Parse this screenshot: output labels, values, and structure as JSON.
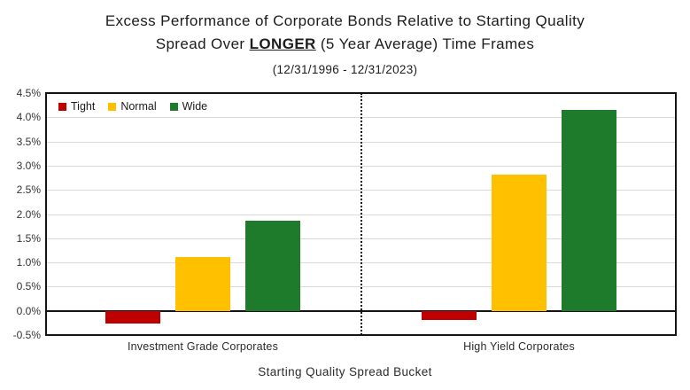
{
  "header": {
    "title_line1": "Excess Performance of Corporate Bonds Relative to Starting Quality",
    "title_line2_pre": "Spread Over ",
    "title_line2_emph": "LONGER",
    "title_line2_post": " (5 Year Average) Time Frames",
    "subtitle": "(12/31/1996 - 12/31/2023)"
  },
  "chart_data": {
    "type": "bar",
    "title": "Excess Performance of Corporate Bonds Relative to Starting Quality Spread Over LONGER (5 Year Average) Time Frames",
    "subtitle": "(12/31/1996 - 12/31/2023)",
    "categories": [
      "Investment Grade Corporates",
      "High Yield Corporates"
    ],
    "series": [
      {
        "name": "Tight",
        "color": "#C00000",
        "values": [
          -0.26,
          -0.18
        ]
      },
      {
        "name": "Normal",
        "color": "#FFC000",
        "values": [
          1.12,
          2.82
        ]
      },
      {
        "name": "Wide",
        "color": "#1E7B2C",
        "values": [
          1.86,
          4.15
        ]
      }
    ],
    "values_unit": "%",
    "xlabel": "Starting Quality Spread Bucket",
    "ylabel": "",
    "ylim": [
      -0.5,
      4.5
    ],
    "y_tick_step": 0.5,
    "y_ticks": [
      "4.5%",
      "4.0%",
      "3.5%",
      "3.0%",
      "2.5%",
      "2.0%",
      "1.5%",
      "1.0%",
      "0.5%",
      "0.0%",
      "-0.5%"
    ],
    "grid": "horizontal",
    "legend": [
      "Tight",
      "Normal",
      "Wide"
    ],
    "legend_position": "top-left inside plot",
    "divider_note": "vertical dotted line separating category groups",
    "colors": {
      "tight": "#C00000",
      "normal": "#FFC000",
      "wide": "#1E7B2C",
      "gridline": "#DADADA",
      "axis": "#141414"
    }
  }
}
